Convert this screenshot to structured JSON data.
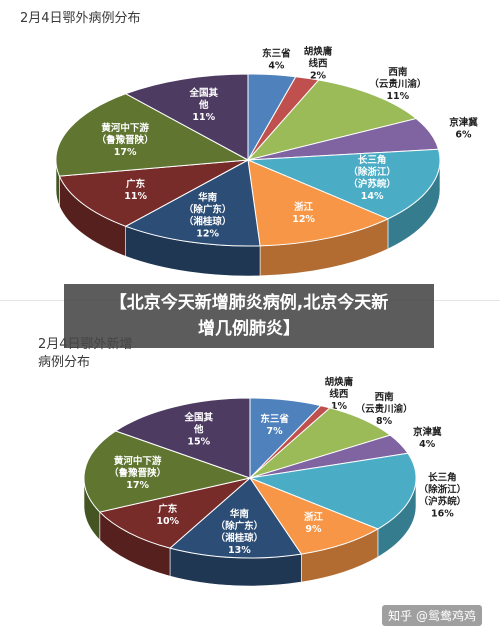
{
  "chart_data": [
    {
      "type": "pie",
      "title_line1": "2月4日鄂外病例分布",
      "title_line2": "",
      "slices": [
        {
          "label": "东三省",
          "value": 4,
          "value_text": "4%",
          "color": "#4f81bd"
        },
        {
          "label": "胡焕庸线西",
          "value": 2,
          "value_text": "2%",
          "color": "#c0504d"
        },
        {
          "label": "西南（云贵川渝）",
          "value": 11,
          "value_text": "11%",
          "color": "#9bbb59"
        },
        {
          "label": "京津冀",
          "value": 6,
          "value_text": "6%",
          "color": "#8064a2"
        },
        {
          "label": "长三角（除浙江）（沪苏皖）",
          "value": 14,
          "value_text": "14%",
          "color": "#4bacc6"
        },
        {
          "label": "浙江",
          "value": 12,
          "value_text": "12%",
          "color": "#f79646"
        },
        {
          "label": "华南（除广东）（湘桂琼）",
          "value": 12,
          "value_text": "12%",
          "color": "#2c4d75"
        },
        {
          "label": "广东",
          "value": 11,
          "value_text": "11%",
          "color": "#772c2a"
        },
        {
          "label": "黄河中下游（鲁豫晋陕）",
          "value": 17,
          "value_text": "17%",
          "color": "#5f7530"
        },
        {
          "label": "全国其他",
          "value": 11,
          "value_text": "11%",
          "color": "#4d3b62"
        }
      ]
    },
    {
      "type": "pie",
      "title_line1": "2月4日鄂外新增",
      "title_line2": "病例分布",
      "slices": [
        {
          "label": "东三省",
          "value": 7,
          "value_text": "7%",
          "color": "#4f81bd"
        },
        {
          "label": "胡焕庸线西",
          "value": 1,
          "value_text": "1%",
          "color": "#c0504d"
        },
        {
          "label": "西南（云贵川渝）",
          "value": 8,
          "value_text": "8%",
          "color": "#9bbb59"
        },
        {
          "label": "京津冀",
          "value": 4,
          "value_text": "4%",
          "color": "#8064a2"
        },
        {
          "label": "长三角（除浙江）（沪苏皖）",
          "value": 16,
          "value_text": "16%",
          "color": "#4bacc6"
        },
        {
          "label": "浙江",
          "value": 9,
          "value_text": "9%",
          "color": "#f79646"
        },
        {
          "label": "华南（除广东）（湘桂琼）",
          "value": 13,
          "value_text": "13%",
          "color": "#2c4d75"
        },
        {
          "label": "广东",
          "value": 10,
          "value_text": "10%",
          "color": "#772c2a"
        },
        {
          "label": "黄河中下游（鲁豫晋陕）",
          "value": 17,
          "value_text": "17%",
          "color": "#5f7530"
        },
        {
          "label": "全国其他",
          "value": 15,
          "value_text": "15%",
          "color": "#4d3b62"
        }
      ]
    }
  ],
  "banner": {
    "line1": "【北京今天新增肺炎病例,北京今天新",
    "line2": "增几例肺炎】"
  },
  "watermark": "知乎 @鸳鸯鸡鸡"
}
